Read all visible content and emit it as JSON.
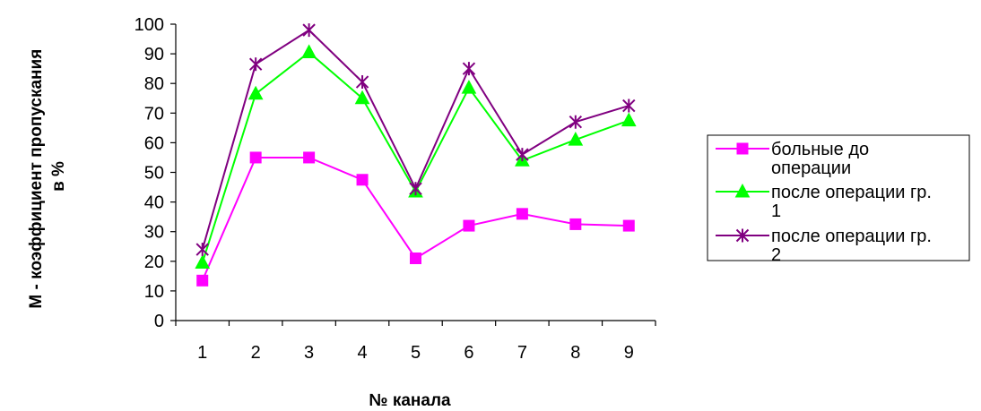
{
  "chart_data": {
    "type": "line",
    "title": "",
    "xlabel": "№ канала",
    "ylabel_lines": [
      "М - коэффициент пропускания",
      "в %"
    ],
    "categories": [
      "1",
      "2",
      "3",
      "4",
      "5",
      "6",
      "7",
      "8",
      "9"
    ],
    "ylim": [
      0,
      100
    ],
    "yticks": [
      "0",
      "10",
      "20",
      "30",
      "40",
      "50",
      "60",
      "70",
      "80",
      "90",
      "100"
    ],
    "grid": false,
    "legend_position": "right",
    "series": [
      {
        "name_lines": [
          "больные до",
          "операции"
        ],
        "marker": "square",
        "color": "#ff00ff",
        "values": [
          13.5,
          55,
          55,
          47.5,
          21,
          32,
          36,
          32.5,
          32
        ]
      },
      {
        "name_lines": [
          "после операции гр.",
          "1"
        ],
        "marker": "triangle",
        "color": "#00ff00",
        "values": [
          19.5,
          76.5,
          90.5,
          75,
          43.5,
          78.5,
          54,
          61,
          67.5
        ]
      },
      {
        "name_lines": [
          "после операции гр.",
          "2"
        ],
        "marker": "asterisk",
        "color": "#800080",
        "values": [
          24,
          86.5,
          98,
          80.5,
          44.5,
          85,
          56,
          67,
          72.5
        ]
      }
    ]
  }
}
